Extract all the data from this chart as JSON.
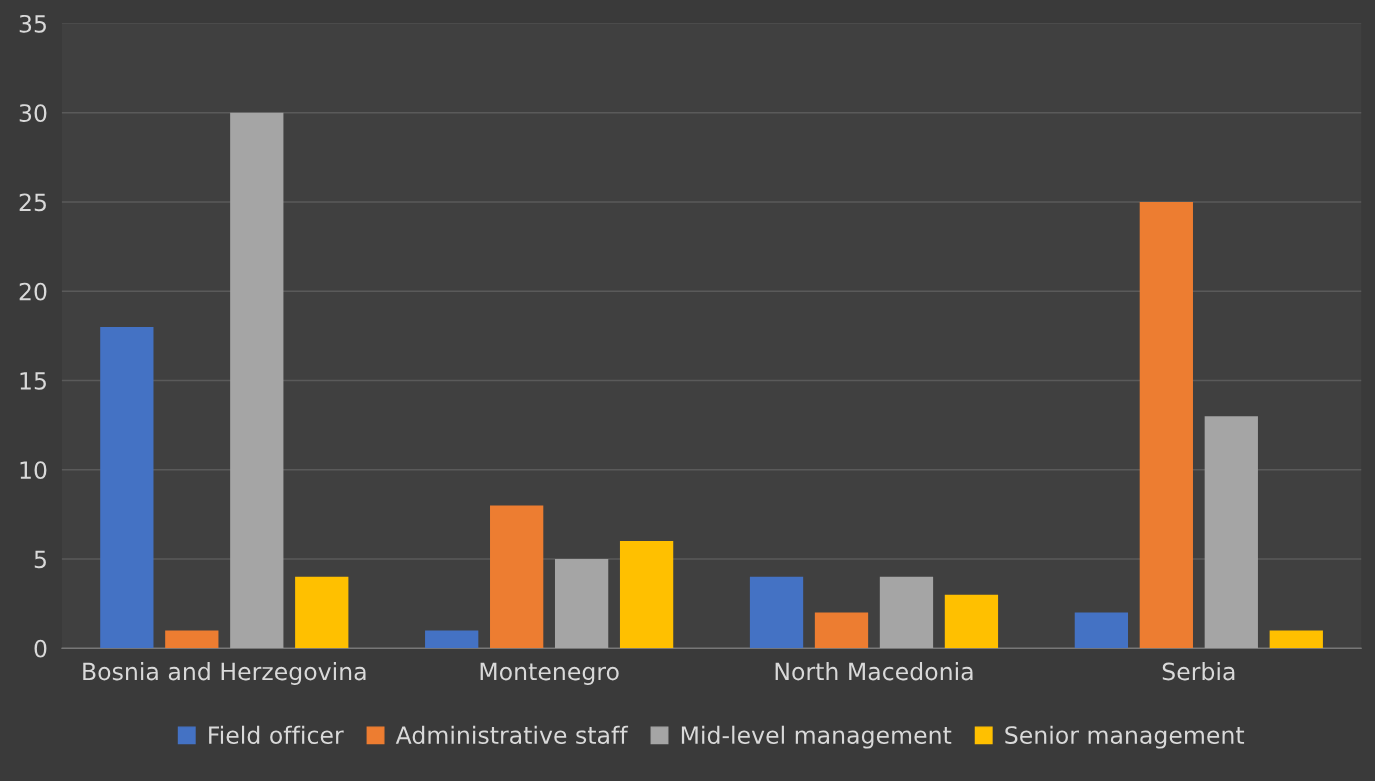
{
  "chart_data": {
    "type": "bar",
    "categories": [
      "Bosnia and Herzegovina",
      "Montenegro",
      "North Macedonia",
      "Serbia"
    ],
    "series": [
      {
        "name": "Field officer",
        "color": "#4472c4",
        "values": [
          18,
          1,
          4,
          2
        ]
      },
      {
        "name": "Administrative staff",
        "color": "#ed7d31",
        "values": [
          1,
          8,
          2,
          25
        ]
      },
      {
        "name": "Mid-level management",
        "color": "#a5a5a5",
        "values": [
          30,
          5,
          4,
          13
        ]
      },
      {
        "name": "Senior management",
        "color": "#ffc000",
        "values": [
          4,
          6,
          3,
          1
        ]
      }
    ],
    "ylim": [
      0,
      35
    ],
    "yticks": [
      0,
      5,
      10,
      15,
      20,
      25,
      30,
      35
    ],
    "grid": "y",
    "legend": "bottom"
  }
}
